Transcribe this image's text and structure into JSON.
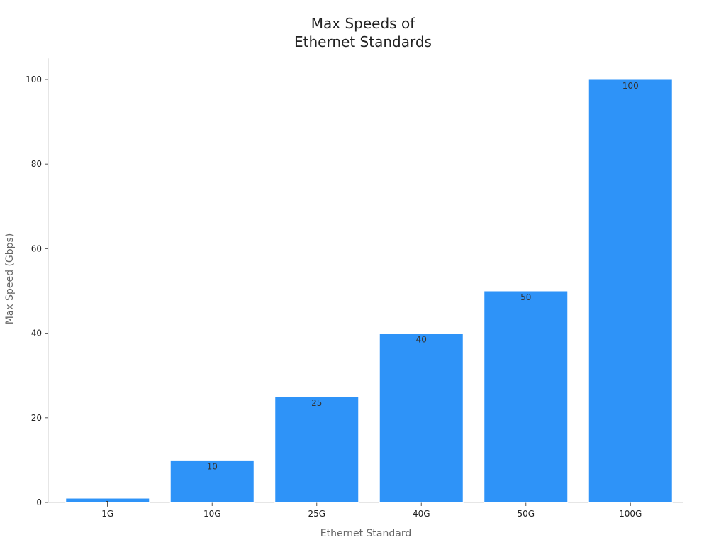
{
  "chart_data": {
    "type": "bar",
    "title_lines": [
      "Max Speeds of",
      "Ethernet Standards"
    ],
    "xlabel": "Ethernet Standard",
    "ylabel": "Max Speed (Gbps)",
    "categories": [
      "1G",
      "10G",
      "25G",
      "40G",
      "50G",
      "100G"
    ],
    "values": [
      1,
      10,
      25,
      40,
      50,
      100
    ],
    "data_labels": [
      "1",
      "10",
      "25",
      "40",
      "50",
      "100"
    ],
    "ylim": [
      0,
      105
    ],
    "yticks": [
      0,
      20,
      40,
      60,
      80,
      100
    ],
    "grid": false,
    "legend": "none",
    "bar_color": "#2E93F8",
    "bar_edge_color": "#ffffff"
  }
}
